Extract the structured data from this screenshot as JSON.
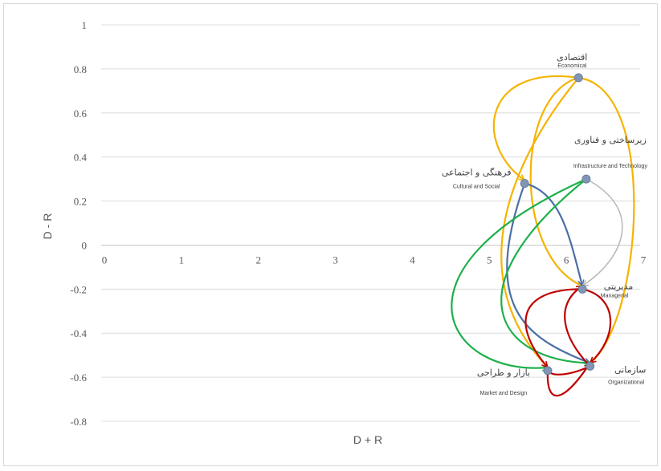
{
  "chart_data": {
    "type": "scatter",
    "xlabel": "D + R",
    "ylabel": "D - R",
    "xlim": [
      0,
      7
    ],
    "ylim": [
      -0.8,
      1
    ],
    "x_ticks": [
      0,
      1,
      2,
      3,
      4,
      5,
      6,
      7
    ],
    "y_ticks": [
      -0.8,
      -0.6,
      -0.4,
      -0.2,
      0,
      0.2,
      0.4,
      0.6,
      0.8,
      1
    ],
    "grid": "horizontal",
    "points": [
      {
        "id": "economic",
        "x": 6.2,
        "y": 0.76,
        "label_fa": "اقتصادی",
        "label_en": "Economical"
      },
      {
        "id": "cultural",
        "x": 5.5,
        "y": 0.28,
        "label_fa": "فرهنگی و اجتماعی",
        "label_en": "Cultural and Social"
      },
      {
        "id": "infra",
        "x": 6.3,
        "y": 0.3,
        "label_fa": "زیرساختی و فناوری",
        "label_en": "Infrastructure and Technology"
      },
      {
        "id": "managerial",
        "x": 6.25,
        "y": -0.2,
        "label_fa": "مدیریتی",
        "label_en": "Managerial"
      },
      {
        "id": "market",
        "x": 5.8,
        "y": -0.57,
        "label_fa": "بازار و طراحی",
        "label_en": "Market and Design"
      },
      {
        "id": "organizational",
        "x": 6.35,
        "y": -0.55,
        "label_fa": "سازمانی",
        "label_en": "Organizational"
      }
    ],
    "relations": [
      {
        "from": "economic",
        "to": "cultural",
        "color": "#f4b400"
      },
      {
        "from": "economic",
        "to": "managerial",
        "color": "#f4b400"
      },
      {
        "from": "economic",
        "to": "market",
        "color": "#f4b400"
      },
      {
        "from": "economic",
        "to": "organizational",
        "color": "#f4b400"
      },
      {
        "from": "cultural",
        "to": "managerial",
        "color": "#4a6fa5"
      },
      {
        "from": "cultural",
        "to": "organizational",
        "color": "#4a6fa5"
      },
      {
        "from": "infra",
        "to": "market",
        "color": "#1db04a"
      },
      {
        "from": "infra",
        "to": "organizational",
        "color": "#1db04a"
      },
      {
        "from": "infra",
        "to": "managerial",
        "color": "#b7b7b7"
      },
      {
        "from": "managerial",
        "to": "market",
        "color": "#c00000"
      },
      {
        "from": "managerial",
        "to": "organizational",
        "color": "#c00000"
      },
      {
        "from": "organizational",
        "to": "managerial",
        "color": "#c00000"
      },
      {
        "from": "market",
        "to": "organizational",
        "color": "#c00000"
      },
      {
        "from": "organizational",
        "to": "market",
        "color": "#c00000"
      }
    ]
  }
}
